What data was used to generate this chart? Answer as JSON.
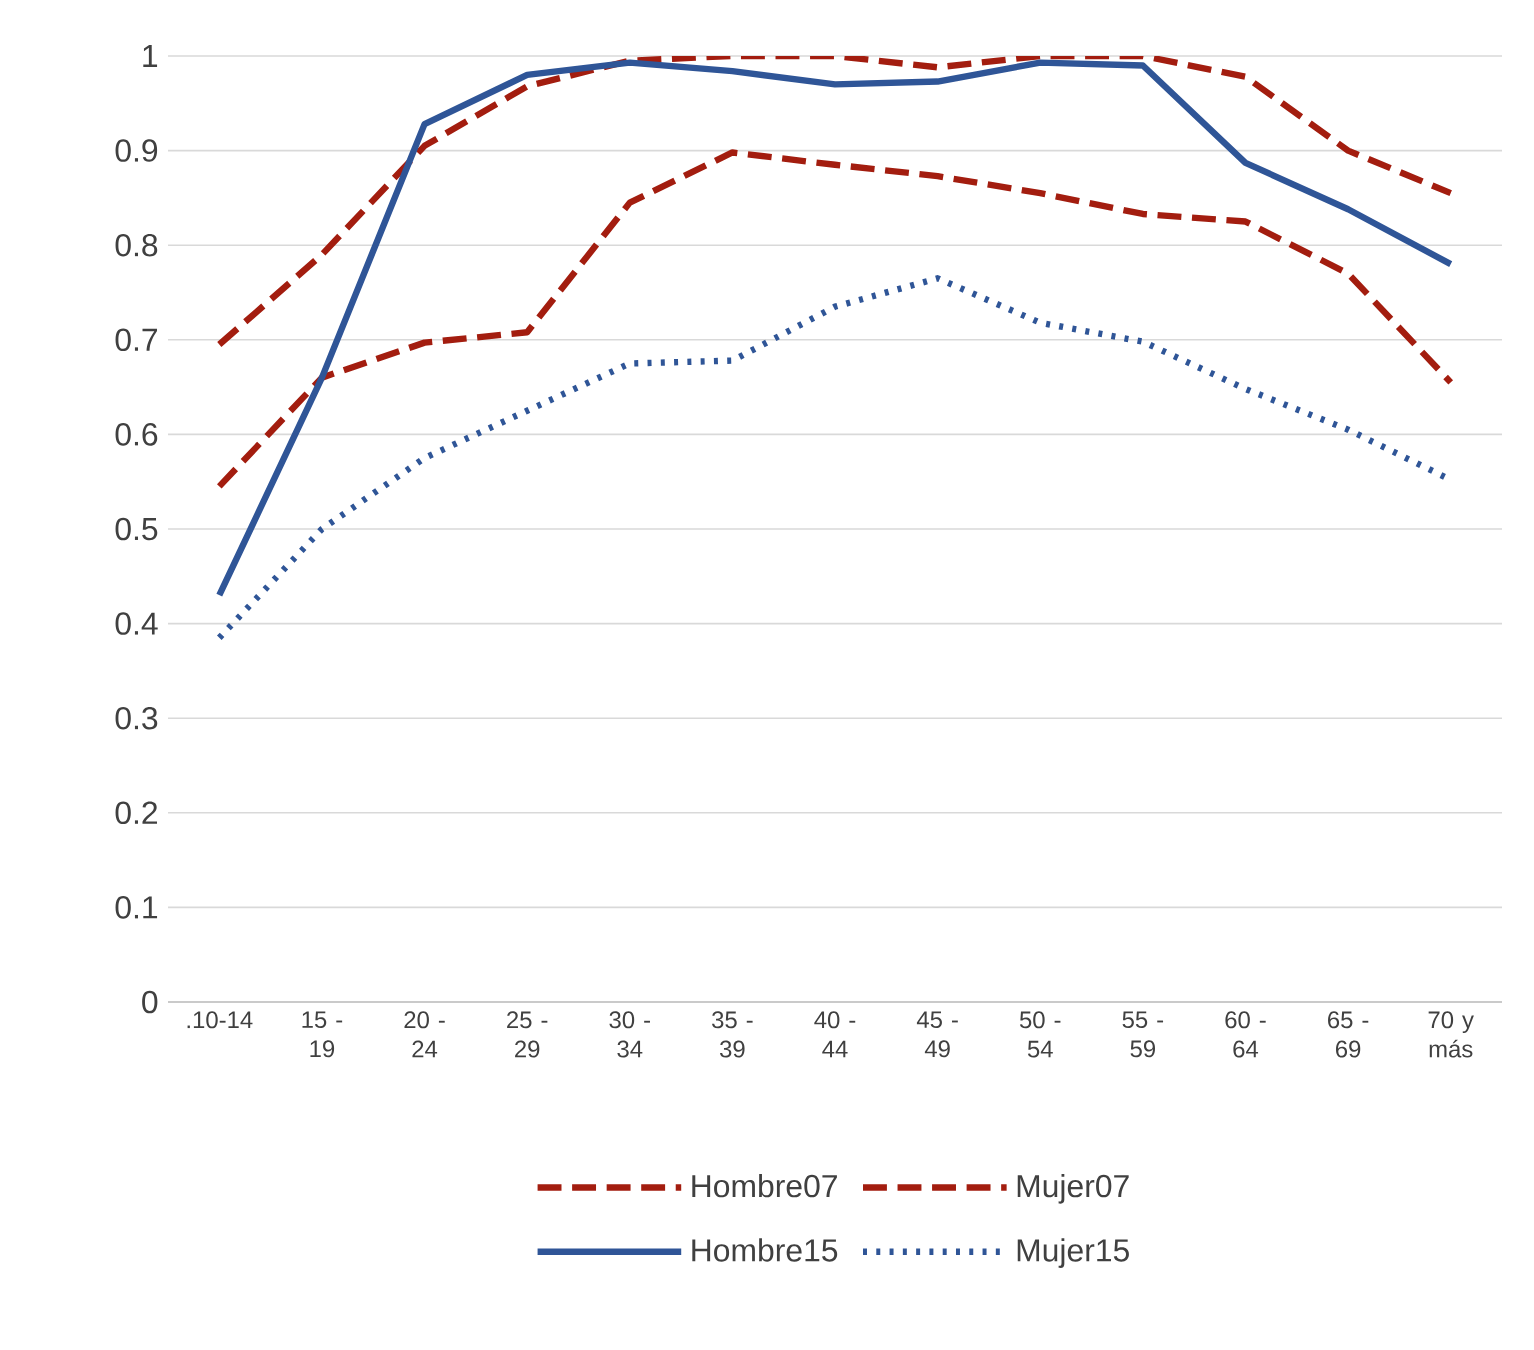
{
  "chart_data": {
    "type": "line",
    "categories": [
      ".10-14",
      "15 - 19",
      "20 - 24",
      "25 - 29",
      "30 - 34",
      "35 - 39",
      "40 - 44",
      "45 - 49",
      "50 - 54",
      "55 - 59",
      "60 - 64",
      "65 - 69",
      "70 y más"
    ],
    "series": [
      {
        "name": "Hombre07",
        "color": "#a31d0f",
        "line_style": "dashed",
        "values": [
          0.695,
          0.79,
          0.905,
          0.968,
          0.995,
          1.0,
          1.0,
          0.988,
          1.0,
          1.0,
          0.978,
          0.9,
          0.855
        ]
      },
      {
        "name": "Mujer07",
        "color": "#a31d0f",
        "line_style": "dashed",
        "values": [
          0.545,
          0.66,
          0.697,
          0.708,
          0.845,
          0.898,
          0.885,
          0.873,
          0.855,
          0.833,
          0.825,
          0.77,
          0.655
        ]
      },
      {
        "name": "Hombre15",
        "color": "#2f5597",
        "line_style": "solid",
        "values": [
          0.43,
          0.66,
          0.928,
          0.98,
          0.993,
          0.984,
          0.97,
          0.973,
          0.993,
          0.99,
          0.887,
          0.838,
          0.78
        ]
      },
      {
        "name": "Mujer15",
        "color": "#2f5597",
        "line_style": "dotted",
        "values": [
          0.385,
          0.5,
          0.575,
          0.625,
          0.675,
          0.678,
          0.735,
          0.765,
          0.718,
          0.698,
          0.648,
          0.605,
          0.552
        ]
      }
    ],
    "ylim": [
      0,
      1
    ],
    "yticks": [
      0,
      0.1,
      0.2,
      0.3,
      0.4,
      0.5,
      0.6,
      0.7,
      0.8,
      0.9,
      1
    ],
    "grid": "y",
    "legend": "bottom",
    "marker": "none"
  }
}
